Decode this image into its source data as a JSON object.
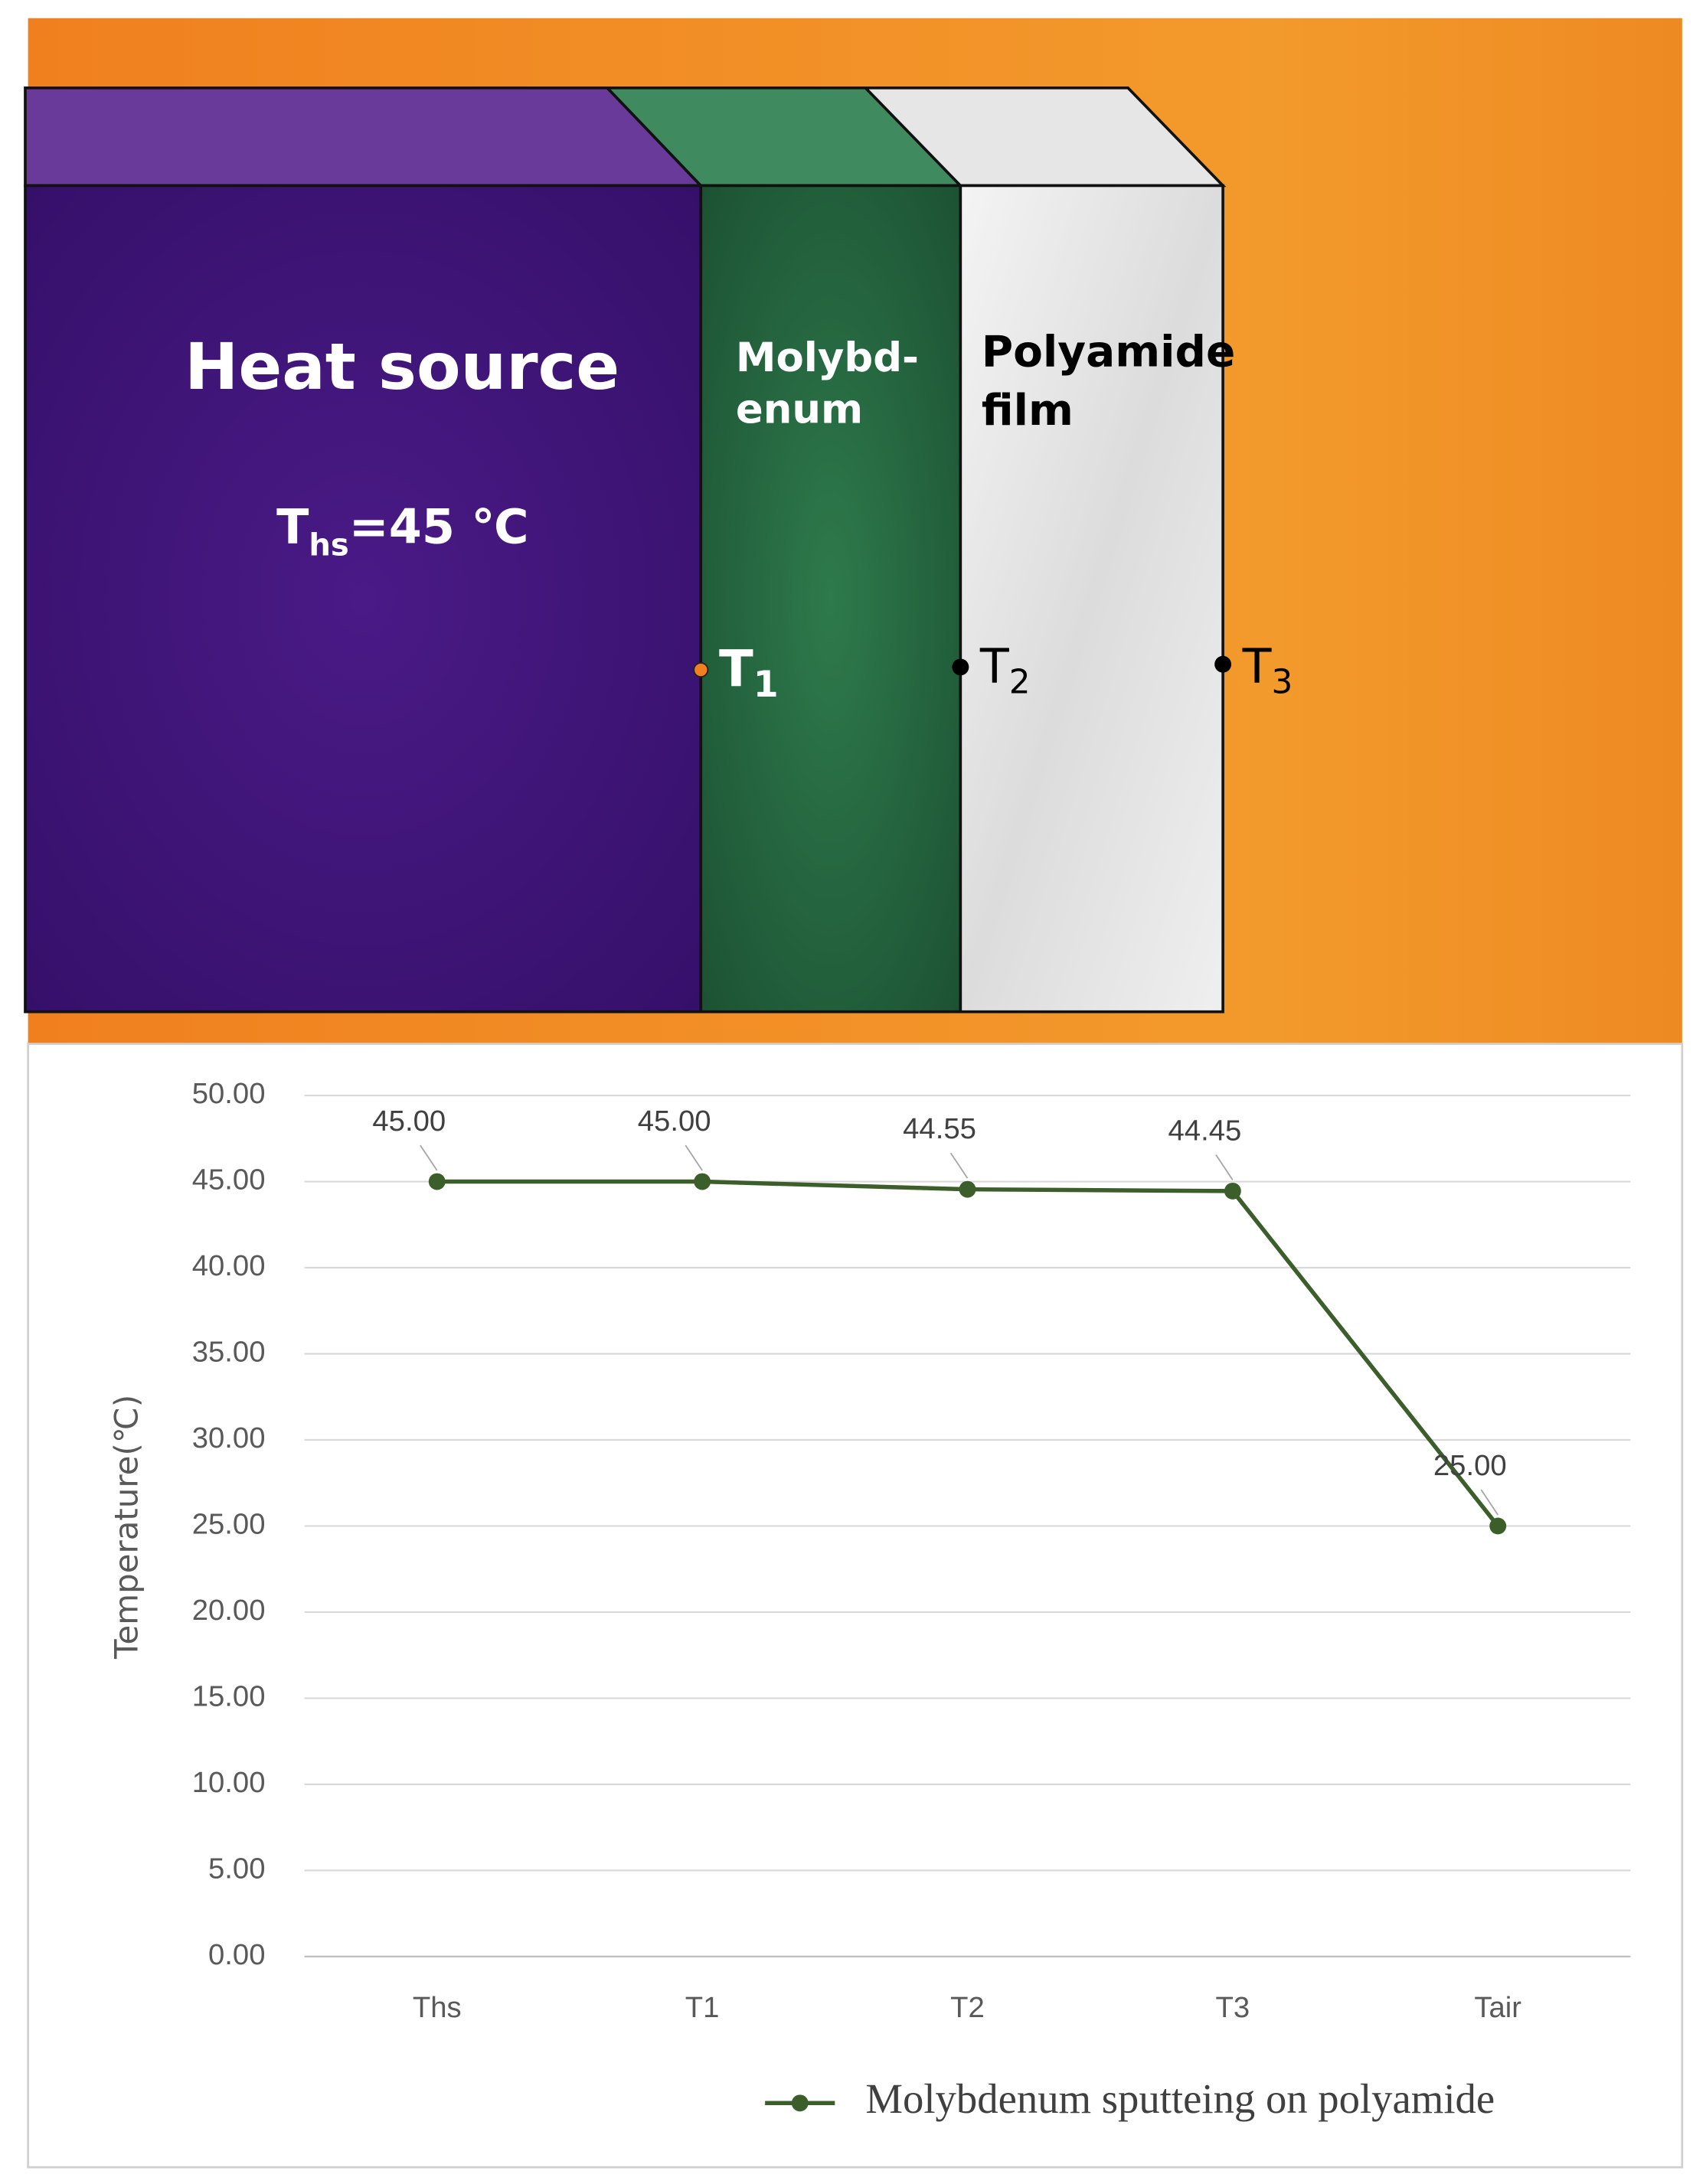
{
  "diagram": {
    "heat_source": "Heat source",
    "ths": {
      "main": "T",
      "sub": "hs",
      "rest": "=45 ℃"
    },
    "molybdenum": [
      "Molybd-",
      "enum"
    ],
    "polyamide": [
      "Polyamide",
      "film"
    ],
    "points": [
      {
        "main": "T",
        "sub": "1"
      },
      {
        "main": "T",
        "sub": "2"
      },
      {
        "main": "T",
        "sub": "3"
      }
    ]
  },
  "chart_data": {
    "type": "line",
    "y_label": "Temperature(℃)",
    "categories": [
      "Ths",
      "T1",
      "T2",
      "T3",
      "Tair"
    ],
    "series": [
      {
        "name": "Molybdenum sputteing on polyamide",
        "color": "#3b5e2b",
        "values": [
          45,
          45,
          44.55,
          44.45,
          25
        ],
        "value_labels": [
          "45.00",
          "45.00",
          "44.55",
          "44.45",
          "25.00"
        ]
      }
    ],
    "ylim": [
      0,
      50
    ],
    "yticks": [
      {
        "value": 0,
        "label": "0.00"
      },
      {
        "value": 5,
        "label": "5.00"
      },
      {
        "value": 10,
        "label": "10.00"
      },
      {
        "value": 15,
        "label": "15.00"
      },
      {
        "value": 20,
        "label": "20.00"
      },
      {
        "value": 25,
        "label": "25.00"
      },
      {
        "value": 30,
        "label": "30.00"
      },
      {
        "value": 35,
        "label": "35.00"
      },
      {
        "value": 40,
        "label": "40.00"
      },
      {
        "value": 45,
        "label": "45.00"
      },
      {
        "value": 50,
        "label": "50.00"
      }
    ],
    "grid": true,
    "legend": "bottom"
  }
}
